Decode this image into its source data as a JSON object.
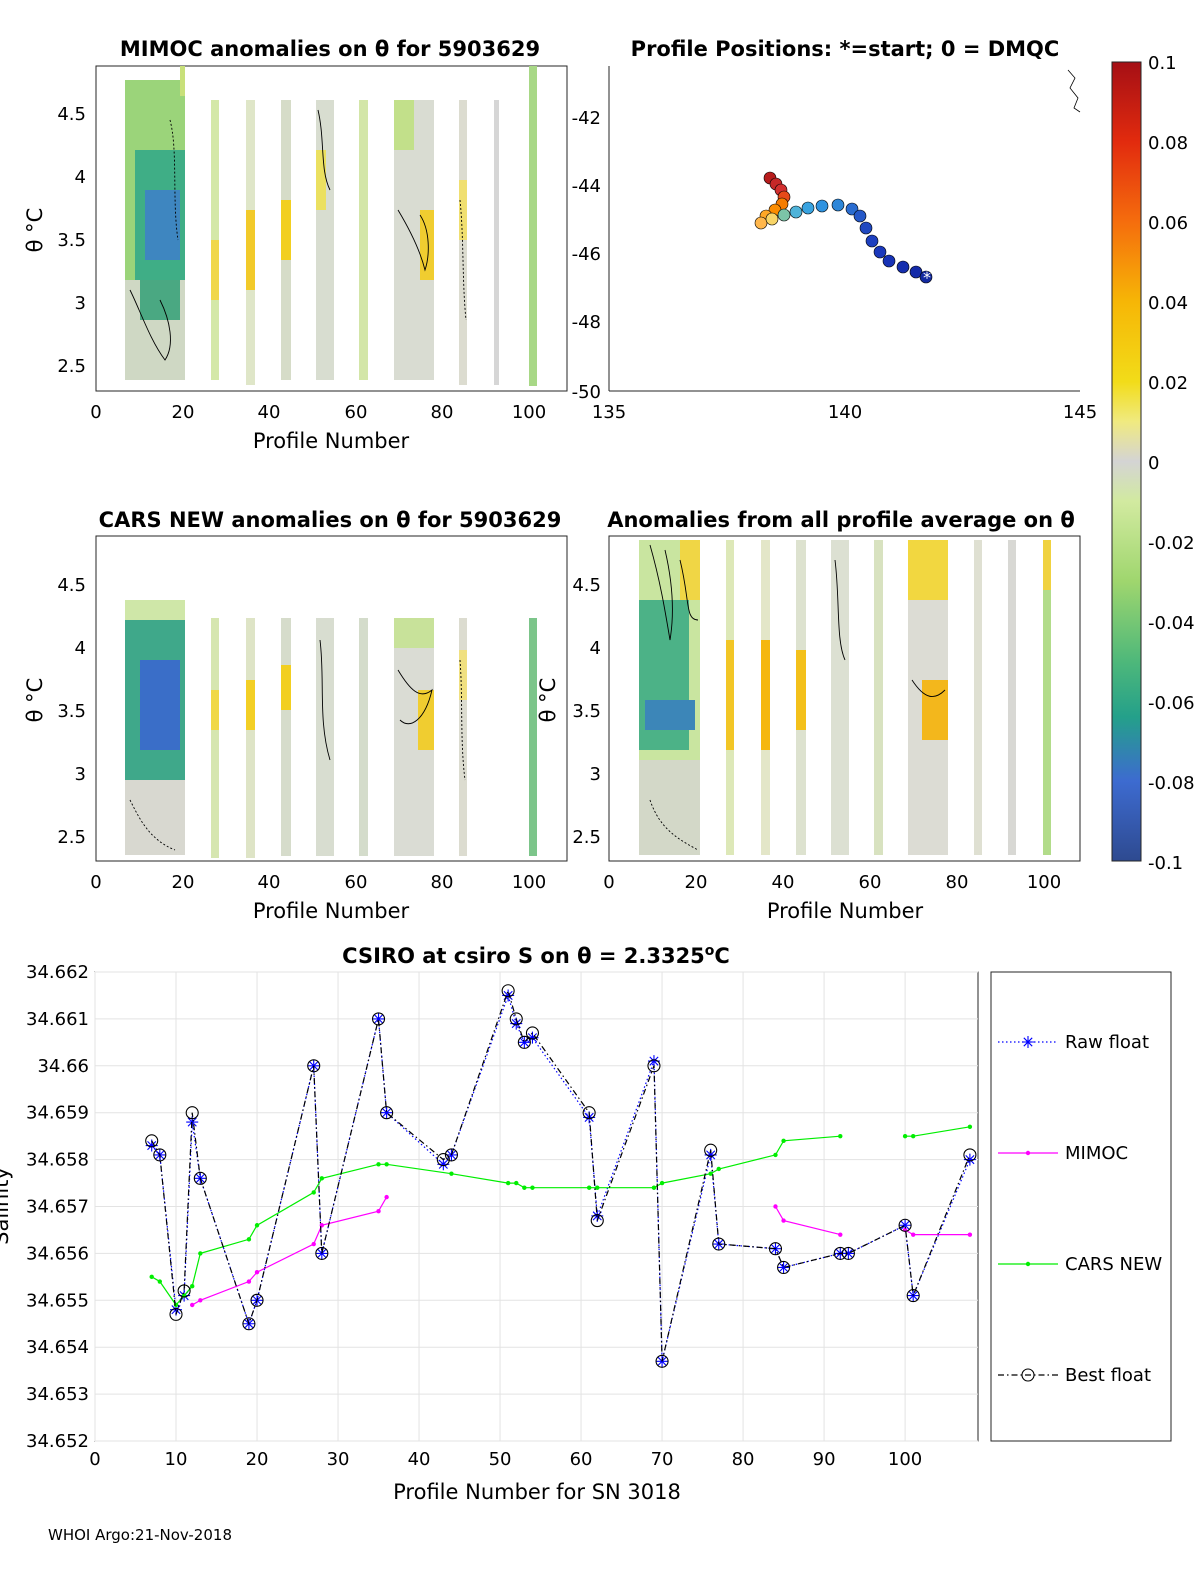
{
  "footer": "WHOI Argo:21-Nov-2018",
  "panels": {
    "mimoc": {
      "title": "MIMOC anomalies on θ  for 5903629",
      "xlabel": "Profile Number",
      "ylabel": "θ °C",
      "xticks": [
        "0",
        "20",
        "40",
        "60",
        "80",
        "100"
      ],
      "yticks": [
        "2.5",
        "3",
        "3.5",
        "4",
        "4.5"
      ]
    },
    "positions": {
      "title": "Profile Positions: *=start; 0 = DMQC",
      "xticks": [
        "135",
        "140",
        "145"
      ],
      "yticks": [
        "-42",
        "-44",
        "-46",
        "-48",
        "-50"
      ]
    },
    "cars": {
      "title": "CARS NEW anomalies on θ for 5903629",
      "xlabel": "Profile Number",
      "ylabel": "θ °C",
      "xticks": [
        "0",
        "20",
        "40",
        "60",
        "80",
        "100"
      ],
      "yticks": [
        "2.5",
        "3",
        "3.5",
        "4",
        "4.5"
      ]
    },
    "avg": {
      "title": "Anomalies from all profile average on θ",
      "xlabel": "Profile Number",
      "ylabel": "θ °C",
      "xticks": [
        "0",
        "20",
        "40",
        "60",
        "80",
        "100"
      ],
      "yticks": [
        "2.5",
        "3",
        "3.5",
        "4",
        "4.5"
      ]
    },
    "colorbar": {
      "ticks": [
        "0.1",
        "0.08",
        "0.06",
        "0.04",
        "0.02",
        "0",
        "-0.02",
        "-0.04",
        "-0.06",
        "-0.08",
        "-0.1"
      ]
    }
  },
  "chart_data": {
    "type": "line",
    "title_prefix": "CSIRO at csiro S on θ = 2.3325",
    "title_suffix": "C",
    "title_degree": "o",
    "xlabel": "Profile Number for SN 3018",
    "ylabel": "Salinity",
    "xlim": [
      0,
      109
    ],
    "ylim": [
      34.652,
      34.662
    ],
    "xticks": [
      "0",
      "10",
      "20",
      "30",
      "40",
      "50",
      "60",
      "70",
      "80",
      "90",
      "100"
    ],
    "yticks": [
      "34.652",
      "34.653",
      "34.654",
      "34.655",
      "34.656",
      "34.657",
      "34.658",
      "34.659",
      "34.66",
      "34.661",
      "34.662"
    ],
    "legend": [
      "Raw float",
      "MIMOC",
      "CARS NEW",
      "Best float"
    ],
    "series": [
      {
        "name": "Raw float",
        "color": "#0000ff",
        "style": "dotted",
        "marker": "asterisk",
        "segments": [
          [
            [
              7,
              34.6583
            ],
            [
              8,
              34.6581
            ],
            [
              10,
              34.6548
            ],
            [
              11,
              34.6551
            ],
            [
              12,
              34.6588
            ],
            [
              13,
              34.6576
            ],
            [
              19,
              34.6545
            ],
            [
              20,
              34.655
            ],
            [
              27,
              34.66
            ],
            [
              28,
              34.656
            ],
            [
              35,
              34.661
            ],
            [
              36,
              34.659
            ],
            [
              43,
              34.6579
            ],
            [
              44,
              34.6581
            ],
            [
              51,
              34.6615
            ],
            [
              52,
              34.6609
            ],
            [
              53,
              34.6605
            ],
            [
              54,
              34.6606
            ],
            [
              61,
              34.6589
            ],
            [
              62,
              34.6568
            ],
            [
              69,
              34.6601
            ],
            [
              70,
              34.6537
            ],
            [
              76,
              34.6581
            ],
            [
              77,
              34.6562
            ],
            [
              84,
              34.6561
            ],
            [
              85,
              34.6557
            ],
            [
              92,
              34.656
            ],
            [
              93,
              34.656
            ],
            [
              100,
              34.6566
            ],
            [
              101,
              34.6551
            ],
            [
              108,
              34.658
            ]
          ]
        ]
      },
      {
        "name": "MIMOC",
        "color": "#ff00ff",
        "style": "solid",
        "marker": "dot",
        "segments": [
          [
            [
              12,
              34.6549
            ],
            [
              13,
              34.655
            ],
            [
              19,
              34.6554
            ],
            [
              20,
              34.6556
            ],
            [
              27,
              34.6562
            ],
            [
              28,
              34.6566
            ],
            [
              35,
              34.6569
            ],
            [
              36,
              34.6572
            ]
          ],
          [
            [
              84,
              34.657
            ],
            [
              85,
              34.6567
            ],
            [
              92,
              34.6564
            ]
          ],
          [
            [
              100,
              34.6565
            ],
            [
              101,
              34.6564
            ],
            [
              108,
              34.6564
            ]
          ]
        ]
      },
      {
        "name": "CARS NEW",
        "color": "#00ee00",
        "style": "solid",
        "marker": "dot",
        "segments": [
          [
            [
              7,
              34.6555
            ],
            [
              8,
              34.6554
            ],
            [
              10,
              34.6549
            ],
            [
              11,
              34.6551
            ],
            [
              12,
              34.6553
            ],
            [
              13,
              34.656
            ],
            [
              19,
              34.6563
            ],
            [
              20,
              34.6566
            ],
            [
              27,
              34.6573
            ],
            [
              28,
              34.6576
            ],
            [
              35,
              34.6579
            ],
            [
              36,
              34.6579
            ],
            [
              44,
              34.6577
            ],
            [
              51,
              34.6575
            ],
            [
              52,
              34.6575
            ],
            [
              53,
              34.6574
            ],
            [
              54,
              34.6574
            ],
            [
              61,
              34.6574
            ],
            [
              62,
              34.6574
            ],
            [
              69,
              34.6574
            ],
            [
              70,
              34.6575
            ],
            [
              76,
              34.6577
            ],
            [
              77,
              34.6578
            ],
            [
              84,
              34.6581
            ],
            [
              85,
              34.6584
            ],
            [
              92,
              34.6585
            ]
          ],
          [
            [
              100,
              34.6585
            ],
            [
              101,
              34.6585
            ],
            [
              108,
              34.6587
            ]
          ]
        ]
      },
      {
        "name": "Best float",
        "color": "#000000",
        "style": "dashdot",
        "marker": "circle",
        "segments": [
          [
            [
              7,
              34.6584
            ],
            [
              8,
              34.6581
            ],
            [
              10,
              34.6547
            ],
            [
              11,
              34.6552
            ],
            [
              12,
              34.659
            ],
            [
              13,
              34.6576
            ],
            [
              19,
              34.6545
            ],
            [
              20,
              34.655
            ],
            [
              27,
              34.66
            ],
            [
              28,
              34.656
            ],
            [
              35,
              34.661
            ],
            [
              36,
              34.659
            ],
            [
              43,
              34.658
            ],
            [
              44,
              34.6581
            ],
            [
              51,
              34.6616
            ],
            [
              52,
              34.661
            ],
            [
              53,
              34.6605
            ],
            [
              54,
              34.6607
            ],
            [
              61,
              34.659
            ],
            [
              62,
              34.6567
            ],
            [
              69,
              34.66
            ],
            [
              70,
              34.6537
            ],
            [
              76,
              34.6582
            ],
            [
              77,
              34.6562
            ],
            [
              84,
              34.6561
            ],
            [
              85,
              34.6557
            ],
            [
              92,
              34.656
            ],
            [
              93,
              34.656
            ],
            [
              100,
              34.6566
            ],
            [
              101,
              34.6551
            ],
            [
              108,
              34.6581
            ]
          ]
        ]
      }
    ]
  }
}
